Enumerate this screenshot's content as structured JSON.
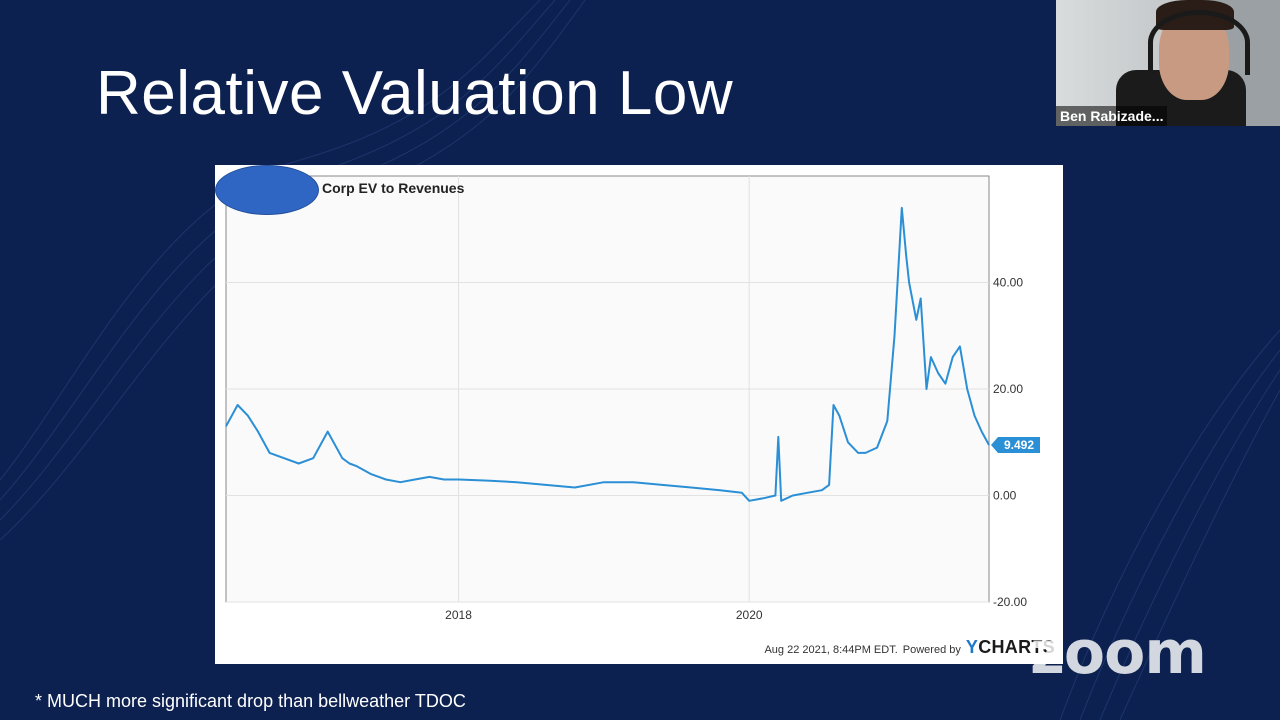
{
  "slide": {
    "title": "Relative Valuation Low",
    "footnote": "* MUCH more significant drop than bellweather TDOC"
  },
  "chart": {
    "title": "Corp EV to Revenues",
    "timestamp": "Aug 22 2021, 8:44PM EDT.",
    "powered_by": "Powered by",
    "logo_y": "Y",
    "logo_rest": "CHARTS",
    "last_value_label": "9.492"
  },
  "chart_data": {
    "type": "line",
    "title": "Corp EV to Revenues",
    "xlabel": "",
    "ylabel": "",
    "y_ticks": [
      40,
      20,
      0,
      -20
    ],
    "y_tick_labels": [
      "40.00",
      "20.00",
      "0.00",
      "-20.00"
    ],
    "x_ticks": [
      2018,
      2020
    ],
    "x_tick_labels": [
      "2018",
      "2020"
    ],
    "ylim": [
      -20,
      60
    ],
    "xlim": [
      2016.4,
      2021.65
    ],
    "grid": true,
    "color": "#2b8fd6",
    "series": [
      {
        "name": "Corp EV to Revenues",
        "x": [
          2016.4,
          2016.48,
          2016.55,
          2016.62,
          2016.7,
          2016.8,
          2016.9,
          2017.0,
          2017.1,
          2017.2,
          2017.25,
          2017.3,
          2017.4,
          2017.5,
          2017.6,
          2017.7,
          2017.8,
          2017.9,
          2018.0,
          2018.2,
          2018.4,
          2018.6,
          2018.8,
          2019.0,
          2019.2,
          2019.4,
          2019.6,
          2019.8,
          2019.95,
          2020.0,
          2020.1,
          2020.18,
          2020.2,
          2020.22,
          2020.3,
          2020.4,
          2020.5,
          2020.55,
          2020.58,
          2020.62,
          2020.68,
          2020.75,
          2020.8,
          2020.88,
          2020.95,
          2021.0,
          2021.05,
          2021.08,
          2021.1,
          2021.15,
          2021.18,
          2021.22,
          2021.25,
          2021.3,
          2021.35,
          2021.4,
          2021.45,
          2021.5,
          2021.55,
          2021.6,
          2021.65
        ],
        "values": [
          13,
          17,
          15,
          12,
          8,
          7,
          6,
          7,
          12,
          7,
          6,
          5.5,
          4,
          3,
          2.5,
          3,
          3.5,
          3,
          3,
          2.8,
          2.5,
          2,
          1.5,
          2.5,
          2.5,
          2,
          1.5,
          1,
          0.5,
          -1,
          -0.5,
          0,
          11,
          -1,
          0,
          0.5,
          1,
          2,
          17,
          15,
          10,
          8,
          8,
          9,
          14,
          30,
          54,
          45,
          40,
          33,
          37,
          20,
          26,
          23,
          21,
          26,
          28,
          20,
          15,
          12,
          9.492
        ]
      }
    ]
  },
  "participant": {
    "name": "Ben Rabizade..."
  },
  "app": {
    "watermark": "zoom"
  }
}
